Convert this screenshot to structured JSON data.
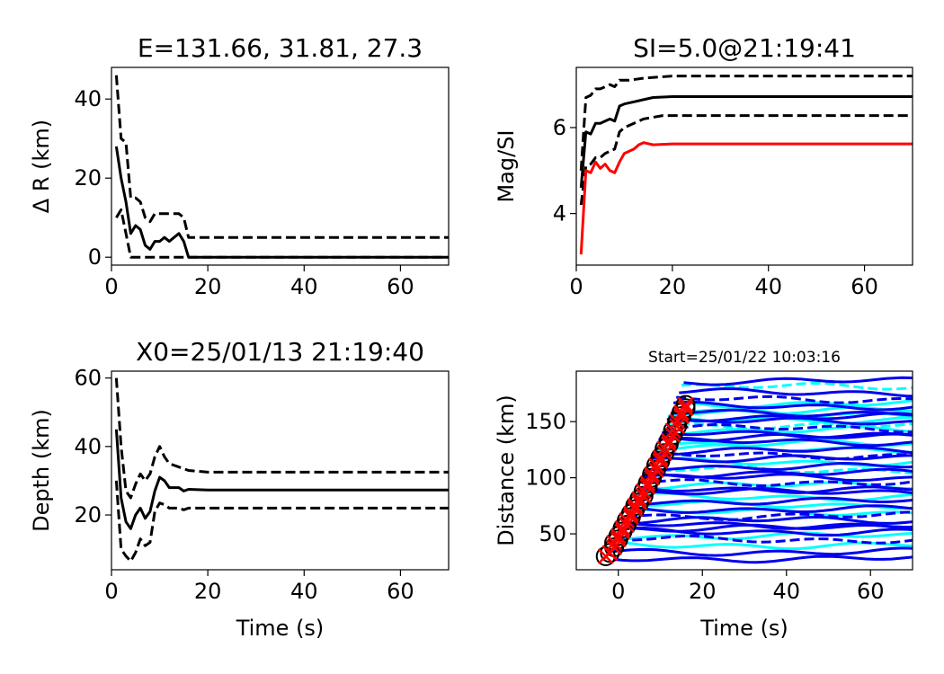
{
  "chart_data": [
    {
      "type": "line",
      "title": "E=131.66, 31.81, 27.3",
      "xlabel": "",
      "ylabel": "Δ R (km)",
      "xlim": [
        0,
        70
      ],
      "ylim": [
        -2,
        48
      ],
      "xticks": [
        0,
        20,
        40,
        60
      ],
      "yticks": [
        0,
        20,
        40
      ],
      "series": [
        {
          "style": "solid",
          "color": "#000000",
          "points": [
            [
              1,
              28
            ],
            [
              2,
              20
            ],
            [
              3,
              14
            ],
            [
              4,
              6
            ],
            [
              5,
              8
            ],
            [
              6,
              7
            ],
            [
              7,
              3
            ],
            [
              8,
              2
            ],
            [
              9,
              4
            ],
            [
              10,
              4
            ],
            [
              11,
              5
            ],
            [
              12,
              4
            ],
            [
              13,
              5
            ],
            [
              14,
              6
            ],
            [
              15,
              4
            ],
            [
              16,
              0
            ],
            [
              70,
              0
            ]
          ]
        },
        {
          "style": "dashed",
          "color": "#000000",
          "points": [
            [
              1,
              46
            ],
            [
              2,
              30
            ],
            [
              3,
              29
            ],
            [
              4,
              15
            ],
            [
              5,
              15
            ],
            [
              6,
              14
            ],
            [
              7,
              10
            ],
            [
              8,
              9
            ],
            [
              9,
              11
            ],
            [
              10,
              11
            ],
            [
              12,
              11
            ],
            [
              14,
              11
            ],
            [
              15,
              10
            ],
            [
              16,
              5
            ],
            [
              70,
              5
            ]
          ]
        },
        {
          "style": "dashed",
          "color": "#000000",
          "points": [
            [
              1,
              10
            ],
            [
              2,
              12
            ],
            [
              3,
              6
            ],
            [
              4,
              0
            ],
            [
              5,
              0
            ],
            [
              6,
              0
            ],
            [
              7,
              0
            ],
            [
              8,
              0
            ],
            [
              10,
              0
            ],
            [
              13,
              0
            ],
            [
              16,
              0
            ],
            [
              70,
              0
            ]
          ]
        }
      ]
    },
    {
      "type": "line",
      "title": "SI=5.0@21:19:41",
      "xlabel": "",
      "ylabel": "Mag/SI",
      "xlim": [
        0,
        70
      ],
      "ylim": [
        2.8,
        7.4
      ],
      "xticks": [
        0,
        20,
        40,
        60
      ],
      "yticks": [
        4,
        6
      ],
      "series": [
        {
          "style": "solid",
          "color": "#000000",
          "points": [
            [
              1,
              4.6
            ],
            [
              2,
              5.9
            ],
            [
              3,
              5.85
            ],
            [
              4,
              6.1
            ],
            [
              5,
              6.1
            ],
            [
              6,
              6.15
            ],
            [
              7,
              6.2
            ],
            [
              8,
              6.15
            ],
            [
              9,
              6.5
            ],
            [
              10,
              6.55
            ],
            [
              12,
              6.6
            ],
            [
              14,
              6.65
            ],
            [
              16,
              6.7
            ],
            [
              20,
              6.72
            ],
            [
              70,
              6.72
            ]
          ]
        },
        {
          "style": "dashed",
          "color": "#000000",
          "points": [
            [
              1,
              5.0
            ],
            [
              2,
              6.7
            ],
            [
              3,
              6.75
            ],
            [
              4,
              6.9
            ],
            [
              5,
              6.9
            ],
            [
              6,
              6.95
            ],
            [
              7,
              7.0
            ],
            [
              8,
              6.95
            ],
            [
              9,
              7.1
            ],
            [
              11,
              7.1
            ],
            [
              14,
              7.15
            ],
            [
              20,
              7.2
            ],
            [
              70,
              7.2
            ]
          ]
        },
        {
          "style": "dashed",
          "color": "#000000",
          "points": [
            [
              1,
              4.2
            ],
            [
              2,
              5.1
            ],
            [
              3,
              5.15
            ],
            [
              4,
              5.3
            ],
            [
              5,
              5.3
            ],
            [
              6,
              5.4
            ],
            [
              7,
              5.45
            ],
            [
              8,
              5.5
            ],
            [
              9,
              5.9
            ],
            [
              10,
              6.0
            ],
            [
              12,
              6.1
            ],
            [
              14,
              6.2
            ],
            [
              18,
              6.28
            ],
            [
              70,
              6.28
            ]
          ]
        },
        {
          "style": "solid",
          "color": "#ff0000",
          "points": [
            [
              1,
              3.05
            ],
            [
              2,
              5.0
            ],
            [
              3,
              4.95
            ],
            [
              4,
              5.2
            ],
            [
              5,
              5.05
            ],
            [
              6,
              5.15
            ],
            [
              7,
              5.0
            ],
            [
              8,
              4.95
            ],
            [
              9,
              5.2
            ],
            [
              10,
              5.4
            ],
            [
              12,
              5.5
            ],
            [
              13,
              5.6
            ],
            [
              14,
              5.65
            ],
            [
              16,
              5.6
            ],
            [
              20,
              5.62
            ],
            [
              70,
              5.62
            ]
          ]
        }
      ]
    },
    {
      "type": "line",
      "title": "X0=25/01/13 21:19:40",
      "xlabel": "Time (s)",
      "ylabel": "Depth (km)",
      "xlim": [
        0,
        70
      ],
      "ylim": [
        4,
        62
      ],
      "xticks": [
        0,
        20,
        40,
        60
      ],
      "yticks": [
        20,
        40,
        60
      ],
      "series": [
        {
          "style": "solid",
          "color": "#000000",
          "points": [
            [
              1,
              45
            ],
            [
              2,
              25
            ],
            [
              3,
              18
            ],
            [
              4,
              16
            ],
            [
              5,
              20
            ],
            [
              6,
              22
            ],
            [
              7,
              19
            ],
            [
              8,
              21
            ],
            [
              9,
              27
            ],
            [
              10,
              31
            ],
            [
              11,
              30
            ],
            [
              12,
              28
            ],
            [
              14,
              28
            ],
            [
              15,
              27
            ],
            [
              16,
              27.5
            ],
            [
              20,
              27.3
            ],
            [
              70,
              27.3
            ]
          ]
        },
        {
          "style": "dashed",
          "color": "#000000",
          "points": [
            [
              1,
              60
            ],
            [
              2,
              40
            ],
            [
              3,
              27
            ],
            [
              4,
              25
            ],
            [
              5,
              29
            ],
            [
              6,
              32
            ],
            [
              7,
              30
            ],
            [
              8,
              32
            ],
            [
              9,
              37
            ],
            [
              10,
              40
            ],
            [
              11,
              37
            ],
            [
              12,
              35
            ],
            [
              14,
              34
            ],
            [
              16,
              33
            ],
            [
              20,
              32.5
            ],
            [
              70,
              32.5
            ]
          ]
        },
        {
          "style": "dashed",
          "color": "#000000",
          "points": [
            [
              1,
              30
            ],
            [
              2,
              10
            ],
            [
              3,
              8
            ],
            [
              4,
              6.5
            ],
            [
              5,
              9
            ],
            [
              6,
              13
            ],
            [
              7,
              11
            ],
            [
              8,
              12
            ],
            [
              9,
              21
            ],
            [
              10,
              23.5
            ],
            [
              11,
              23
            ],
            [
              12,
              22
            ],
            [
              14,
              22
            ],
            [
              15,
              21.5
            ],
            [
              16,
              22
            ],
            [
              20,
              22
            ],
            [
              70,
              22
            ]
          ]
        }
      ]
    },
    {
      "type": "line",
      "title": "Start=25/01/22 10:03:16",
      "xlabel": "Time (s)",
      "ylabel": "Distance (km)",
      "xlim": [
        -10,
        70
      ],
      "ylim": [
        18,
        195
      ],
      "xticks": [
        0,
        20,
        40,
        60
      ],
      "yticks": [
        50,
        100,
        150
      ],
      "traces": {
        "blue_levels": [
          28,
          34,
          45,
          52,
          55,
          58,
          62,
          66,
          72,
          79,
          87,
          90,
          96,
          100,
          104,
          110,
          117,
          120,
          124,
          132,
          136,
          139,
          144,
          150,
          154,
          158,
          164,
          170,
          176,
          186
        ],
        "cyan_levels": [
          40,
          48,
          62,
          69,
          76,
          83,
          93,
          107,
          114,
          126,
          130,
          142,
          147,
          152,
          157,
          160,
          166,
          181
        ],
        "blue_color": "#0000ee",
        "cyan_color": "#00ffff"
      },
      "picks": [
        [
          -3,
          30
        ],
        [
          -2,
          33
        ],
        [
          -1,
          38
        ],
        [
          -1,
          42
        ],
        [
          0,
          45
        ],
        [
          0,
          48
        ],
        [
          1,
          52
        ],
        [
          1,
          55
        ],
        [
          2,
          58
        ],
        [
          2,
          62
        ],
        [
          3,
          65
        ],
        [
          3,
          68
        ],
        [
          4,
          72
        ],
        [
          4,
          75
        ],
        [
          5,
          78
        ],
        [
          5,
          81
        ],
        [
          6,
          84
        ],
        [
          6,
          88
        ],
        [
          7,
          92
        ],
        [
          7,
          95
        ],
        [
          8,
          100
        ],
        [
          8,
          103
        ],
        [
          9,
          107
        ],
        [
          9,
          111
        ],
        [
          10,
          115
        ],
        [
          10,
          118
        ],
        [
          11,
          122
        ],
        [
          11,
          126
        ],
        [
          12,
          130
        ],
        [
          12,
          133
        ],
        [
          13,
          138
        ],
        [
          13,
          142
        ],
        [
          14,
          146
        ],
        [
          14,
          150
        ],
        [
          15,
          155
        ],
        [
          15,
          158
        ],
        [
          16,
          162
        ],
        [
          16,
          165
        ]
      ],
      "pick_colors": {
        "circle": "#000000",
        "cross": "#ff0000"
      }
    }
  ]
}
